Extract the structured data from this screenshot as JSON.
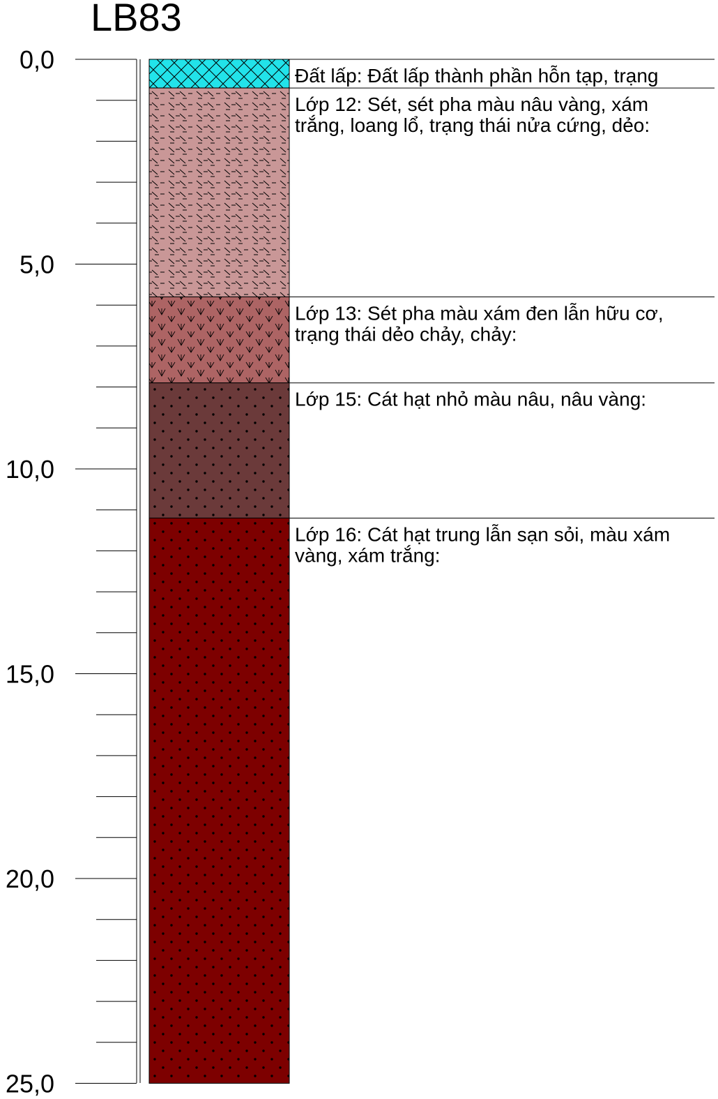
{
  "borehole": {
    "title": "LB83",
    "depth_unit_step": 1,
    "major_tick_step": 5,
    "depth_range": [
      0,
      25
    ],
    "depth_labels": [
      "0,0",
      "5,0",
      "10,0",
      "15,0",
      "20,0",
      "25,0"
    ]
  },
  "layers": [
    {
      "id": "fill",
      "top": 0.0,
      "bottom": 0.7,
      "pattern": "crosshatch",
      "fill_color": "#22e3ea",
      "lines": [
        "Đất lấp: Đất lấp thành phần hỗn tạp, trạng"
      ]
    },
    {
      "id": "layer-12",
      "top": 0.7,
      "bottom": 5.8,
      "pattern": "clay-dash",
      "fill_color": "#c99797",
      "lines": [
        "Lớp 12: Sét, sét pha màu nâu vàng, xám",
        "trắng, loang lổ, trạng thái nửa cứng, dẻo:"
      ]
    },
    {
      "id": "layer-13",
      "top": 5.8,
      "bottom": 7.9,
      "pattern": "organic-v",
      "fill_color": "#ad6464",
      "lines": [
        "Lớp 13: Sét pha màu xám đen lẫn hữu cơ,",
        "trạng thái dẻo chảy, chảy:"
      ]
    },
    {
      "id": "layer-15",
      "top": 7.9,
      "bottom": 11.2,
      "pattern": "dots",
      "fill_color": "#6b3a3a",
      "lines": [
        "Lớp 15: Cát hạt nhỏ màu nâu, nâu vàng:"
      ]
    },
    {
      "id": "layer-16",
      "top": 11.2,
      "bottom": 25.0,
      "pattern": "dots",
      "fill_color": "#7d0000",
      "lines": [
        "Lớp 16: Cát hạt trung lẫn sạn sỏi, màu xám",
        "vàng, xám trắng:"
      ]
    }
  ]
}
